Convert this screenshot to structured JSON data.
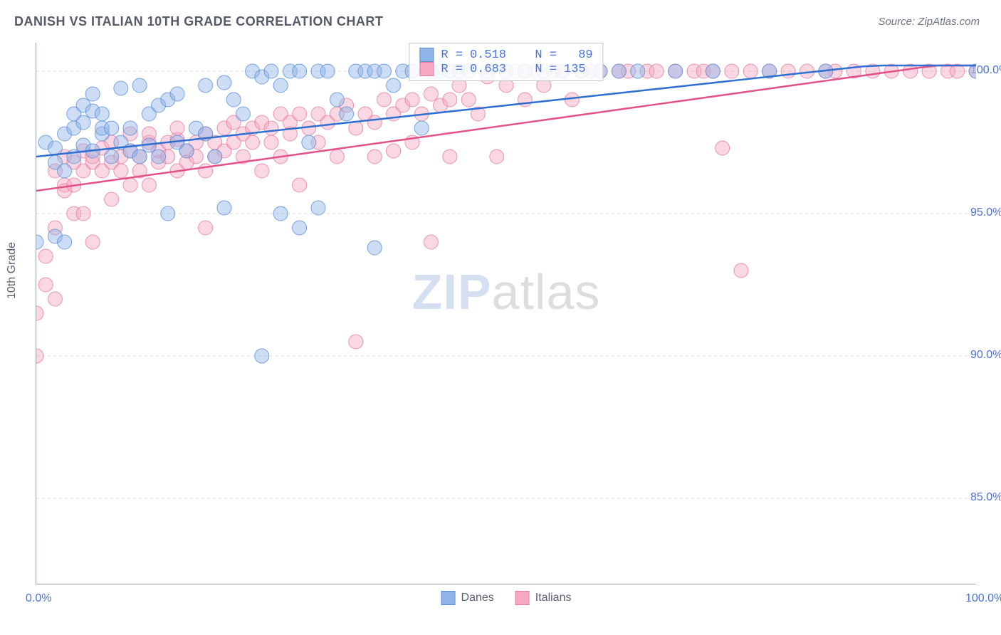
{
  "title": "DANISH VS ITALIAN 10TH GRADE CORRELATION CHART",
  "source_label": "Source: ZipAtlas.com",
  "ylabel": "10th Grade",
  "watermark": {
    "part1": "ZIP",
    "part2": "atlas"
  },
  "chart": {
    "type": "scatter",
    "background_color": "#ffffff",
    "grid_color": "#d8d8d8",
    "axis_color": "#9aa0ac",
    "tick_label_color": "#4a72d4",
    "xlim": [
      0,
      100
    ],
    "ylim": [
      82,
      101
    ],
    "y_grid_values": [
      85,
      90,
      95,
      100
    ],
    "y_tick_labels": [
      "85.0%",
      "90.0%",
      "95.0%",
      "100.0%"
    ],
    "x_tick_positions": [
      0,
      10,
      20,
      30,
      40,
      50,
      60,
      70,
      80,
      90,
      100
    ],
    "x_tick_labels_visible": {
      "0": "0.0%",
      "100": "100.0%"
    },
    "marker_radius": 10,
    "marker_opacity": 0.45,
    "marker_stroke_opacity": 0.8,
    "line_width": 2.5,
    "series": {
      "danes": {
        "label": "Danes",
        "color_fill": "#8fb4e8",
        "color_stroke": "#5a8fd6",
        "line_color": "#2e6fd1",
        "R": "0.518",
        "N": "89",
        "regression": {
          "x1": 0,
          "y1": 97.0,
          "x2": 100,
          "y2": 100.6
        },
        "points": [
          [
            0,
            94.0
          ],
          [
            1,
            97.5
          ],
          [
            2,
            96.8
          ],
          [
            2,
            94.2
          ],
          [
            2,
            97.3
          ],
          [
            3,
            97.8
          ],
          [
            3,
            96.5
          ],
          [
            3,
            94.0
          ],
          [
            4,
            98.5
          ],
          [
            4,
            97.0
          ],
          [
            4,
            98.0
          ],
          [
            5,
            98.2
          ],
          [
            5,
            97.4
          ],
          [
            5,
            98.8
          ],
          [
            6,
            98.6
          ],
          [
            6,
            97.2
          ],
          [
            6,
            99.2
          ],
          [
            7,
            97.8
          ],
          [
            7,
            98.0
          ],
          [
            7,
            98.5
          ],
          [
            8,
            98.0
          ],
          [
            8,
            97.0
          ],
          [
            9,
            99.4
          ],
          [
            9,
            97.5
          ],
          [
            10,
            98.0
          ],
          [
            10,
            97.2
          ],
          [
            11,
            97.0
          ],
          [
            11,
            99.5
          ],
          [
            12,
            97.4
          ],
          [
            12,
            98.5
          ],
          [
            13,
            98.8
          ],
          [
            13,
            97.0
          ],
          [
            14,
            99.0
          ],
          [
            14,
            95.0
          ],
          [
            15,
            97.5
          ],
          [
            15,
            99.2
          ],
          [
            16,
            97.2
          ],
          [
            17,
            98.0
          ],
          [
            18,
            97.8
          ],
          [
            18,
            99.5
          ],
          [
            19,
            97.0
          ],
          [
            20,
            95.2
          ],
          [
            20,
            99.6
          ],
          [
            21,
            99.0
          ],
          [
            22,
            98.5
          ],
          [
            23,
            100.0
          ],
          [
            24,
            99.8
          ],
          [
            24,
            90.0
          ],
          [
            25,
            100.0
          ],
          [
            26,
            99.5
          ],
          [
            26,
            95.0
          ],
          [
            27,
            100.0
          ],
          [
            28,
            100.0
          ],
          [
            28,
            94.5
          ],
          [
            29,
            97.5
          ],
          [
            30,
            100.0
          ],
          [
            30,
            95.2
          ],
          [
            31,
            100.0
          ],
          [
            32,
            99.0
          ],
          [
            33,
            98.5
          ],
          [
            34,
            100.0
          ],
          [
            35,
            100.0
          ],
          [
            36,
            100.0
          ],
          [
            36,
            93.8
          ],
          [
            37,
            100.0
          ],
          [
            38,
            99.5
          ],
          [
            39,
            100.0
          ],
          [
            40,
            100.0
          ],
          [
            41,
            98.0
          ],
          [
            42,
            100.0
          ],
          [
            43,
            100.0
          ],
          [
            44,
            100.0
          ],
          [
            45,
            100.0
          ],
          [
            46,
            100.0
          ],
          [
            48,
            100.0
          ],
          [
            50,
            100.0
          ],
          [
            52,
            100.0
          ],
          [
            54,
            100.0
          ],
          [
            56,
            100.0
          ],
          [
            58,
            100.0
          ],
          [
            60,
            100.0
          ],
          [
            62,
            100.0
          ],
          [
            64,
            100.0
          ],
          [
            68,
            100.0
          ],
          [
            72,
            100.0
          ],
          [
            78,
            100.0
          ],
          [
            84,
            100.0
          ],
          [
            100,
            100.0
          ]
        ]
      },
      "italians": {
        "label": "Italians",
        "color_fill": "#f5a8c0",
        "color_stroke": "#e77aa0",
        "line_color": "#e3518a",
        "R": "0.683",
        "N": "135",
        "regression": {
          "x1": 0,
          "y1": 95.8,
          "x2": 100,
          "y2": 100.4
        },
        "points": [
          [
            0,
            91.5
          ],
          [
            0,
            90.0
          ],
          [
            1,
            92.5
          ],
          [
            1,
            93.5
          ],
          [
            2,
            96.5
          ],
          [
            2,
            94.5
          ],
          [
            2,
            92.0
          ],
          [
            3,
            96.0
          ],
          [
            3,
            95.8
          ],
          [
            3,
            97.0
          ],
          [
            4,
            96.0
          ],
          [
            4,
            95.0
          ],
          [
            4,
            96.8
          ],
          [
            5,
            96.5
          ],
          [
            5,
            95.0
          ],
          [
            5,
            97.2
          ],
          [
            6,
            96.8
          ],
          [
            6,
            94.0
          ],
          [
            6,
            97.0
          ],
          [
            7,
            96.5
          ],
          [
            7,
            97.3
          ],
          [
            8,
            96.8
          ],
          [
            8,
            95.5
          ],
          [
            8,
            97.5
          ],
          [
            9,
            97.0
          ],
          [
            9,
            96.5
          ],
          [
            10,
            97.2
          ],
          [
            10,
            96.0
          ],
          [
            10,
            97.8
          ],
          [
            11,
            97.0
          ],
          [
            11,
            96.5
          ],
          [
            12,
            97.5
          ],
          [
            12,
            96.0
          ],
          [
            12,
            97.8
          ],
          [
            13,
            97.2
          ],
          [
            13,
            96.8
          ],
          [
            14,
            97.5
          ],
          [
            14,
            97.0
          ],
          [
            15,
            97.6
          ],
          [
            15,
            96.5
          ],
          [
            15,
            98.0
          ],
          [
            16,
            97.2
          ],
          [
            16,
            96.8
          ],
          [
            17,
            97.5
          ],
          [
            17,
            97.0
          ],
          [
            18,
            97.8
          ],
          [
            18,
            96.5
          ],
          [
            18,
            94.5
          ],
          [
            19,
            97.5
          ],
          [
            19,
            97.0
          ],
          [
            20,
            98.0
          ],
          [
            20,
            97.2
          ],
          [
            21,
            97.5
          ],
          [
            21,
            98.2
          ],
          [
            22,
            97.8
          ],
          [
            22,
            97.0
          ],
          [
            23,
            98.0
          ],
          [
            23,
            97.5
          ],
          [
            24,
            98.2
          ],
          [
            24,
            96.5
          ],
          [
            25,
            98.0
          ],
          [
            25,
            97.5
          ],
          [
            26,
            98.5
          ],
          [
            26,
            97.0
          ],
          [
            27,
            98.2
          ],
          [
            27,
            97.8
          ],
          [
            28,
            98.5
          ],
          [
            28,
            96.0
          ],
          [
            29,
            98.0
          ],
          [
            30,
            98.5
          ],
          [
            30,
            97.5
          ],
          [
            31,
            98.2
          ],
          [
            32,
            98.5
          ],
          [
            32,
            97.0
          ],
          [
            33,
            98.8
          ],
          [
            34,
            98.0
          ],
          [
            34,
            90.5
          ],
          [
            35,
            98.5
          ],
          [
            36,
            98.2
          ],
          [
            36,
            97.0
          ],
          [
            37,
            99.0
          ],
          [
            38,
            98.5
          ],
          [
            38,
            97.2
          ],
          [
            39,
            98.8
          ],
          [
            40,
            99.0
          ],
          [
            40,
            97.5
          ],
          [
            41,
            98.5
          ],
          [
            42,
            99.2
          ],
          [
            42,
            94.0
          ],
          [
            43,
            98.8
          ],
          [
            44,
            99.0
          ],
          [
            44,
            97.0
          ],
          [
            45,
            99.5
          ],
          [
            46,
            99.0
          ],
          [
            47,
            98.5
          ],
          [
            48,
            99.8
          ],
          [
            49,
            97.0
          ],
          [
            50,
            99.5
          ],
          [
            51,
            100.0
          ],
          [
            52,
            99.0
          ],
          [
            53,
            100.0
          ],
          [
            54,
            99.5
          ],
          [
            55,
            100.0
          ],
          [
            56,
            100.0
          ],
          [
            57,
            99.0
          ],
          [
            58,
            100.0
          ],
          [
            59,
            100.0
          ],
          [
            60,
            100.0
          ],
          [
            62,
            100.0
          ],
          [
            63,
            100.0
          ],
          [
            65,
            100.0
          ],
          [
            66,
            100.0
          ],
          [
            68,
            100.0
          ],
          [
            70,
            100.0
          ],
          [
            71,
            100.0
          ],
          [
            72,
            100.0
          ],
          [
            73,
            97.3
          ],
          [
            74,
            100.0
          ],
          [
            75,
            93.0
          ],
          [
            76,
            100.0
          ],
          [
            78,
            100.0
          ],
          [
            80,
            100.0
          ],
          [
            82,
            100.0
          ],
          [
            84,
            100.0
          ],
          [
            85,
            100.0
          ],
          [
            87,
            100.0
          ],
          [
            89,
            100.0
          ],
          [
            91,
            100.0
          ],
          [
            93,
            100.0
          ],
          [
            95,
            100.0
          ],
          [
            97,
            100.0
          ],
          [
            98,
            100.0
          ],
          [
            100,
            100.0
          ]
        ]
      }
    }
  },
  "legend": {
    "danes_label": "Danes",
    "italians_label": "Italians"
  },
  "stats_labels": {
    "R": "R =",
    "N": "N ="
  }
}
